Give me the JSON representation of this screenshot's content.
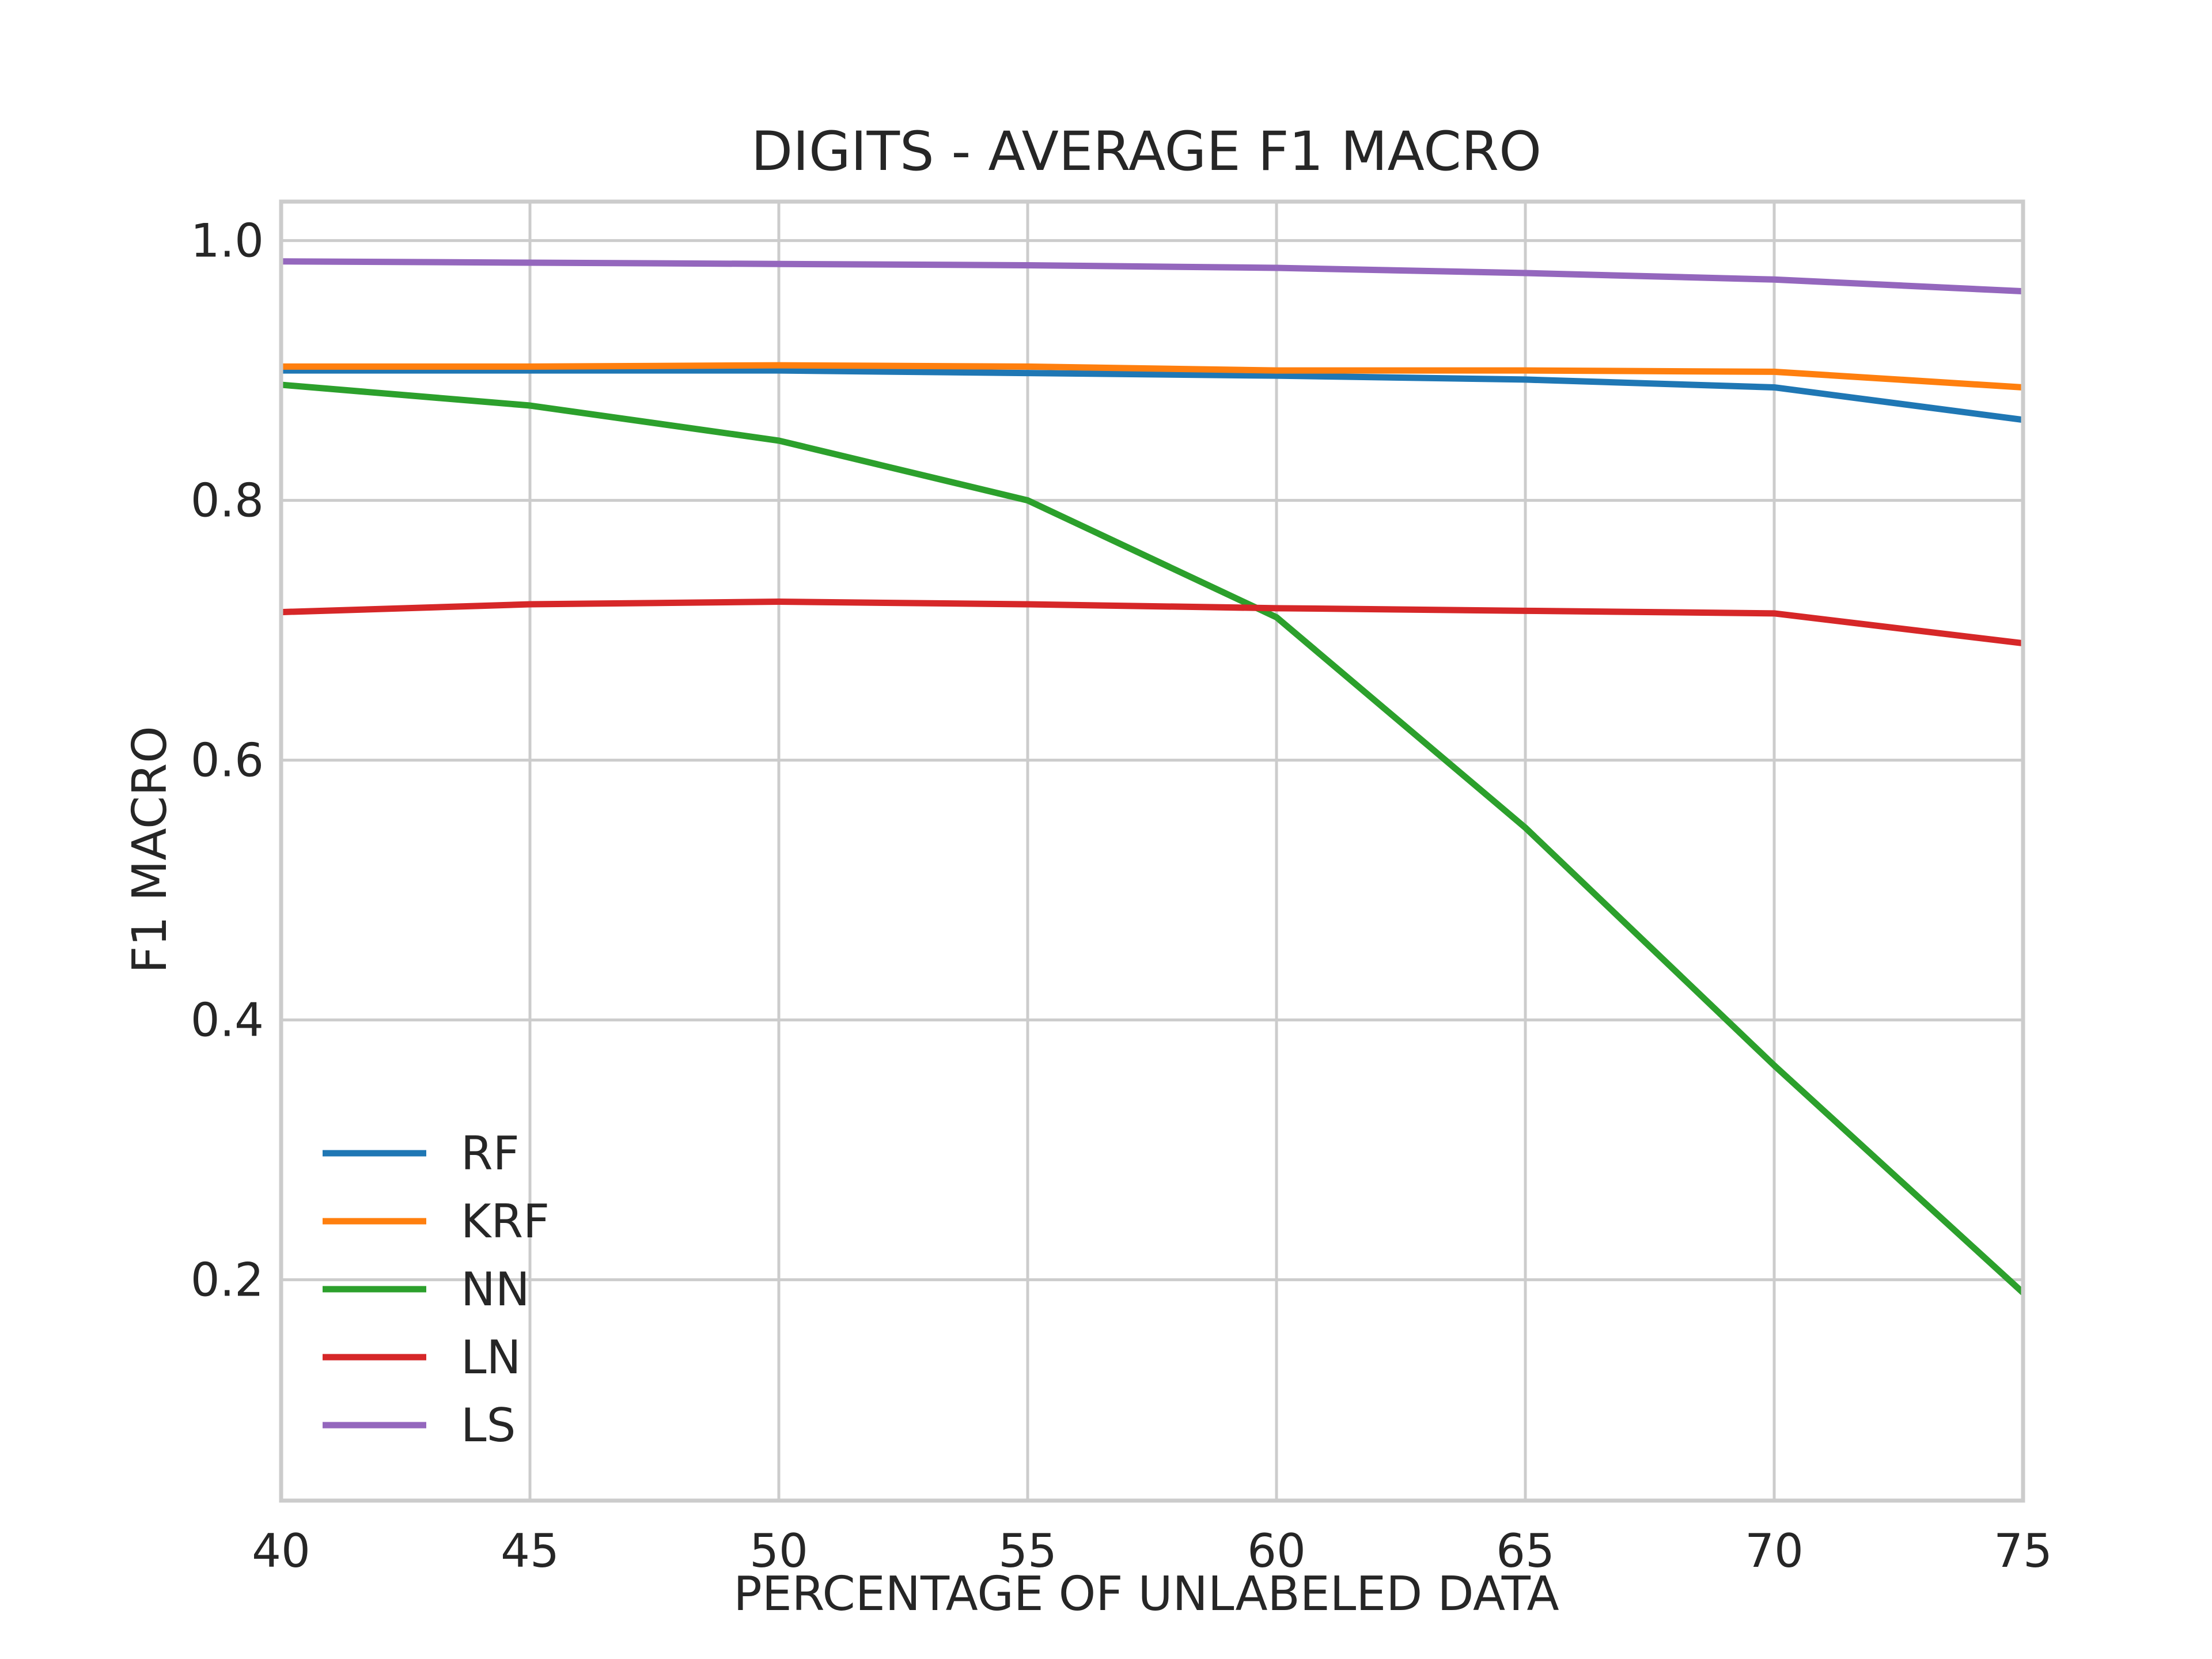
{
  "chart_data": {
    "type": "line",
    "title": "DIGITS - AVERAGE F1 MACRO",
    "xlabel": "PERCENTAGE OF UNLABELED DATA",
    "ylabel": "F1 MACRO",
    "xlim": [
      40,
      75
    ],
    "ylim": [
      0.03,
      1.03
    ],
    "xticks": [
      40,
      45,
      50,
      55,
      60,
      65,
      70,
      75
    ],
    "yticks": [
      0.2,
      0.4,
      0.6,
      0.8,
      1.0
    ],
    "ytick_labels": [
      "0.2",
      "0.4",
      "0.6",
      "0.8",
      "1.0"
    ],
    "grid": true,
    "legend_position": "lower-left",
    "x": [
      40,
      45,
      50,
      55,
      60,
      65,
      70,
      75
    ],
    "series": [
      {
        "name": "RF",
        "color": "#1f77b4",
        "values": [
          0.9,
          0.9,
          0.9,
          0.898,
          0.896,
          0.893,
          0.887,
          0.862
        ]
      },
      {
        "name": "KRF",
        "color": "#ff7f0e",
        "values": [
          0.903,
          0.903,
          0.904,
          0.903,
          0.9,
          0.9,
          0.899,
          0.887
        ]
      },
      {
        "name": "NN",
        "color": "#2ca02c",
        "values": [
          0.889,
          0.873,
          0.846,
          0.8,
          0.71,
          0.548,
          0.365,
          0.19
        ]
      },
      {
        "name": "LN",
        "color": "#d62728",
        "values": [
          0.714,
          0.72,
          0.722,
          0.72,
          0.717,
          0.715,
          0.713,
          0.69
        ]
      },
      {
        "name": "LS",
        "color": "#9467bd",
        "values": [
          0.984,
          0.983,
          0.982,
          0.981,
          0.979,
          0.975,
          0.97,
          0.961
        ]
      }
    ]
  }
}
